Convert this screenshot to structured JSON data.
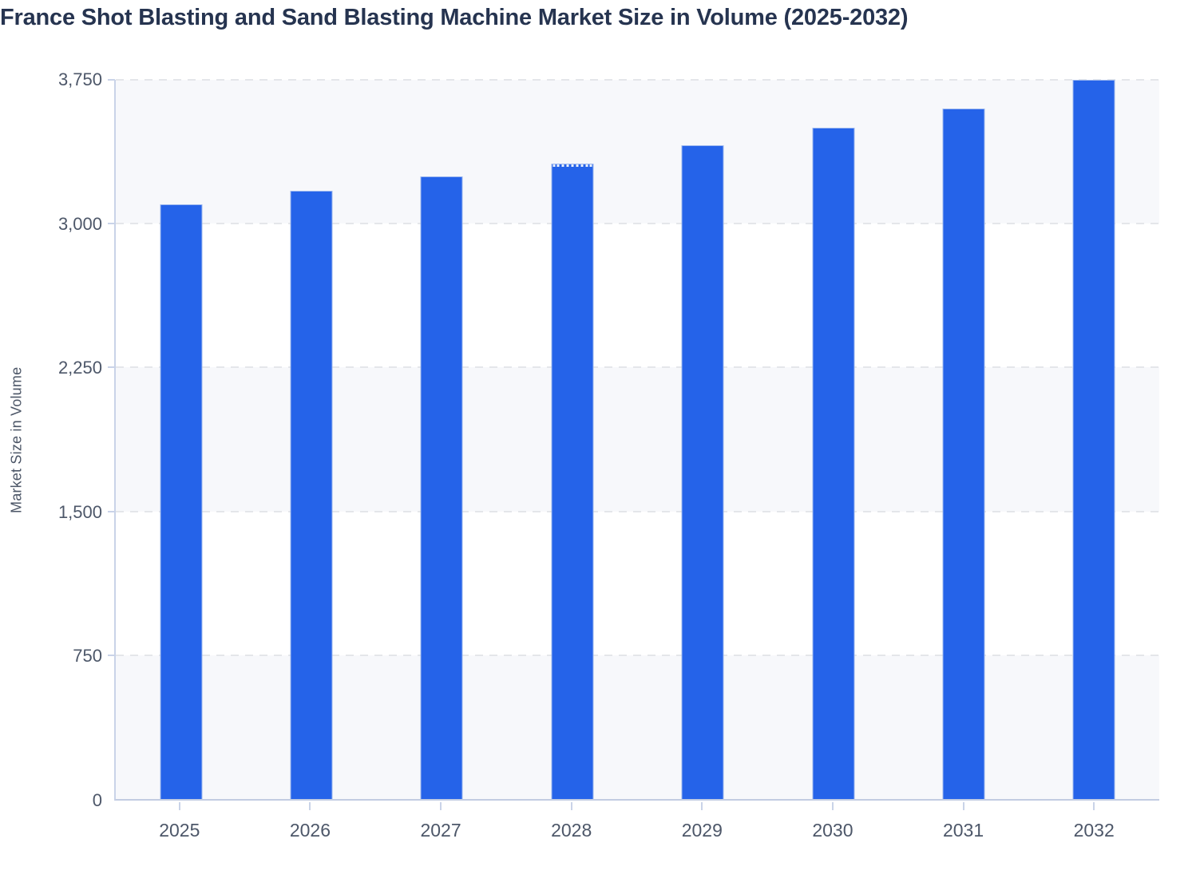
{
  "chart_data": {
    "type": "bar",
    "title": "France Shot Blasting and Sand Blasting Machine Market Size in Volume (2025-2032)",
    "ylabel": "Market Size in Volume",
    "xlabel": "",
    "categories": [
      "2025",
      "2026",
      "2027",
      "2028",
      "2029",
      "2030",
      "2031",
      "2032"
    ],
    "values": [
      3100,
      3170,
      3245,
      3315,
      3410,
      3500,
      3600,
      3750
    ],
    "ylim": [
      0,
      3750
    ],
    "yticks": [
      3750,
      3000,
      2250,
      1500,
      750,
      0
    ],
    "ytick_labels": [
      "3,750",
      "3,000",
      "2,250",
      "1,500",
      "750",
      "0"
    ],
    "grid": "horizontal-dashed",
    "legend": "none",
    "background_bands": "alternating light/white between gridlines, light at top and bottom",
    "dotted_top_category": "2028",
    "colors": {
      "bar": "#2563e9",
      "bar_border": "#9db8ef",
      "band_light": "#f7f8fb",
      "gridline": "#e4e6ea",
      "axis_line": "#c9d3e8",
      "axis_line_bottom": "#c2cce2",
      "tick_text": "#4d5769",
      "title_text": "#263450",
      "ylabel_text": "#4b5566",
      "page_background": "#ffffff"
    }
  }
}
